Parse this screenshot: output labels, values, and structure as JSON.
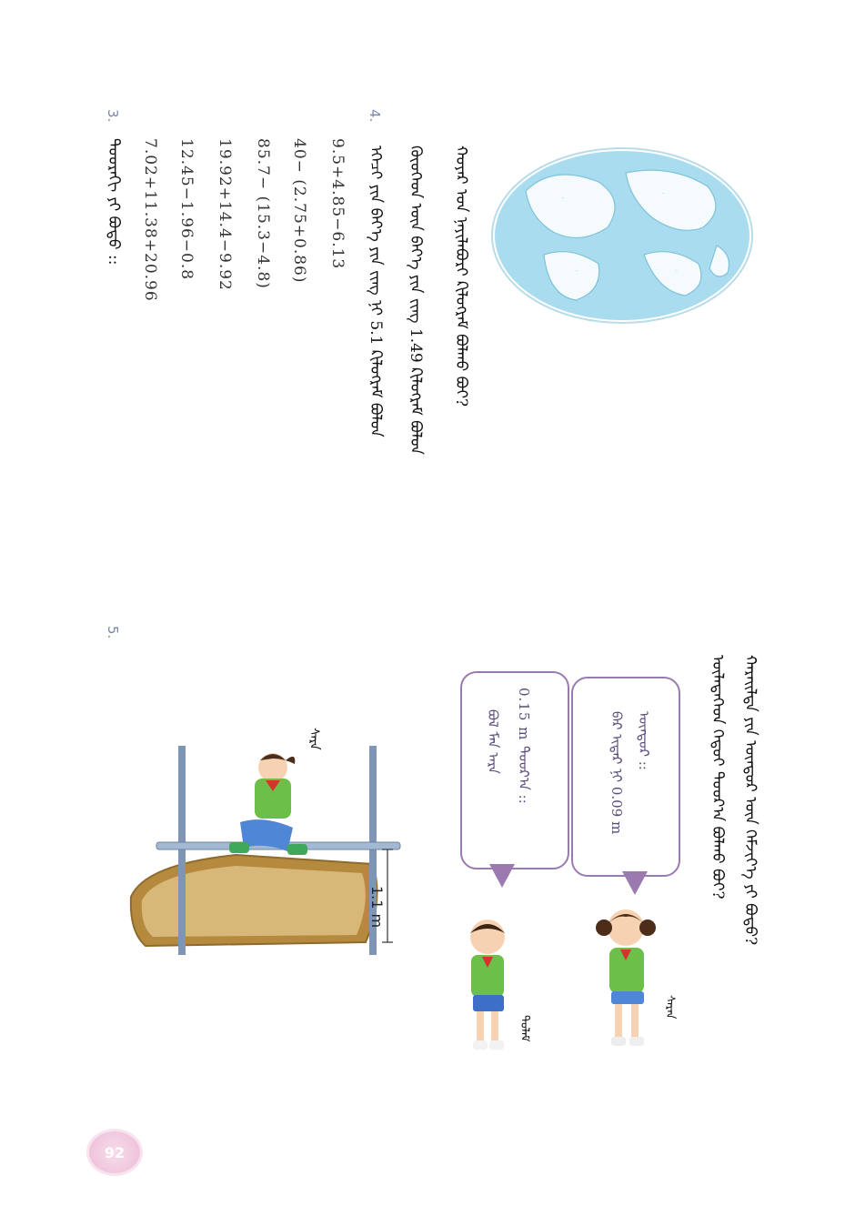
{
  "page": {
    "number": "92"
  },
  "world_map": {
    "label": "world-map"
  },
  "question_3": {
    "number": "3.",
    "instruction": "ᠳᠣᠣᠷᠠᠬᠢ ᠶᠢ ᠪᠣᠳᠣ ::",
    "expressions": [
      "7.02+11.38+20.96",
      "12.45−1.96−0.8",
      "19.92+14.4−9.92",
      "85.7−  (15.3−4.8)",
      "40−  (2.75+0.86)",
      "9.5+4.85−6.13"
    ]
  },
  "question_4": {
    "number": "4.",
    "line1": "ᠡᠭᠡᠴᠢ ᠶᠢᠨ ᠪᠡᠶ᠎ᠡ ᠶᠢᠨ ᠵᠢᠩ ᠨᠢ 5.1 ᠺᠢᠯᠣᠭ᠌ᠷᠠᠮ ᠪᠣᠯᠤᠨ",
    "line2": "ᠬᠦᠦᠬᠡᠳ ᠦᠨ ᠪᠡᠶ᠎ᠡ ᠶᠢᠨ ᠵᠢᠩ 1.49 ᠺᠢᠯᠣᠭ᠌ᠷᠠᠮ ᠪᠣᠯᠤᠨ",
    "line3": "ᠬᠣᠶᠠᠷ ᠤᠨ ᠨᠡᠶᠢᠯᠡᠪᠦᠷᠢ ᠺᠢᠯᠣᠭ᠌ᠷᠠᠮ ᠪᠣᠯᠬᠤ ᠪᠣᠢ?"
  },
  "question_5": {
    "number": "5.",
    "line1": "ᠬᠠᠷᠠᠢᠯᠲᠠ ᠶᠢᠨ ᠥᠨᠳᠥᠷ ᠦᠨ ᠬᠡᠮᠵᠢᠶ᠎ᠡ ᠶᠢ ᠪᠣᠳᠣ?",
    "line2": "ᠦᠯᠡᠳᠡᠭᠡᠳ ᠬᠡᠳᠦᠢ ᠳᠣᠣᠷ᠎ᠠ ᠪᠣᠯᠬᠤ ᠪᠣᠢ?",
    "bar_height": "1.1 m",
    "girl_jumper_name": "ᠰᠠᠷᠠ",
    "bubble_girl": {
      "line1": "ᠪᠠᠷ ᠢᠳᠡᠷ ᠨᠢ 0.09 m",
      "line2": "ᠥᠨᠳᠥᠷ ::"
    },
    "bubble_boy": {
      "line1": "0.15 m ᠳᠣᠣᠷ᠎ᠠ ::",
      "line2": "ᠪᠣᠯ ᠮᠠᠨ ᠠᠷᠠ"
    },
    "girl_name": "ᠰᠠᠷᠠᠨ",
    "boy_name": "ᠳᠤᠯᠠᠮ"
  }
}
